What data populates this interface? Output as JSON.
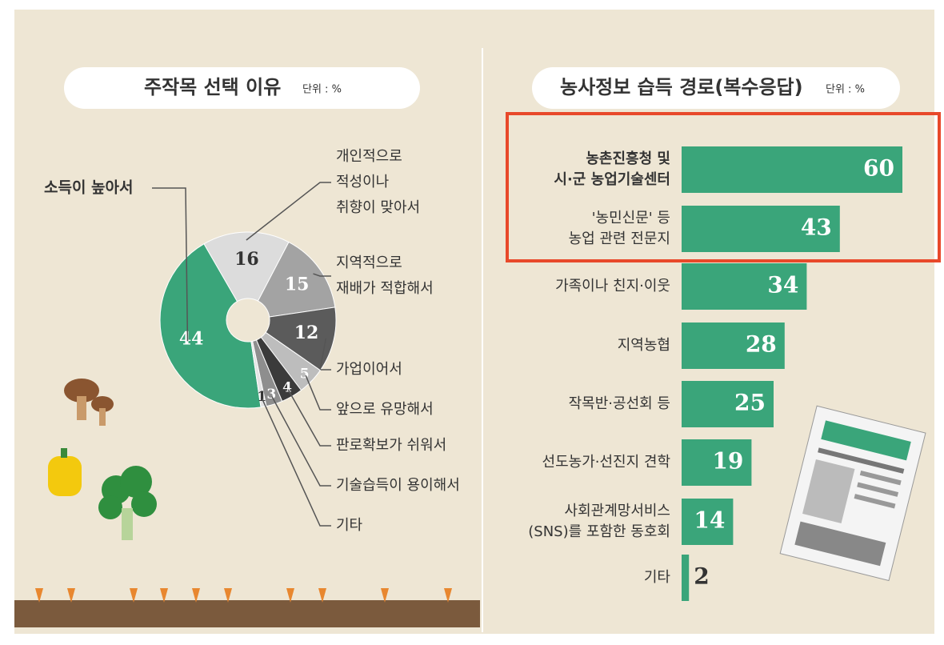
{
  "chart_data": [
    {
      "type": "pie",
      "title": "주작목 선택 이유",
      "unit": "단위 : %",
      "categories": [
        [
          "소득이 높아서"
        ],
        [
          "개인적으로",
          "적성이나",
          "취향이 맞아서"
        ],
        [
          "지역적으로",
          "재배가 적합해서"
        ],
        [
          "가업이어서"
        ],
        [
          "앞으로 유망해서"
        ],
        [
          "판로확보가 쉬워서"
        ],
        [
          "기술습득이 용이해서"
        ],
        [
          "기타"
        ]
      ],
      "values": [
        44,
        16,
        15,
        12,
        5,
        4,
        3,
        1
      ],
      "colors": [
        "#3aa57a",
        "#dcdcdc",
        "#a3a3a3",
        "#5b5b5b",
        "#bdbdbd",
        "#3b3b3b",
        "#8e8e8e",
        "#e4e4e4"
      ]
    },
    {
      "type": "hbar",
      "title": "농사정보 습득 경로(복수응답)",
      "unit": "단위 : %",
      "categories": [
        [
          "농촌진흥청 및",
          "시·군 농업기술센터"
        ],
        [
          "'농민신문' 등",
          "농업 관련 전문지"
        ],
        [
          "가족이나 친지·이웃"
        ],
        [
          "지역농협"
        ],
        [
          "작목반·공선회 등"
        ],
        [
          "선도농가·선진지 견학"
        ],
        [
          "사회관계망서비스",
          "(SNS)를 포함한 동호회"
        ],
        [
          "기타"
        ]
      ],
      "values": [
        60,
        43,
        34,
        28,
        25,
        19,
        14,
        2
      ],
      "color": "#3aa57a"
    }
  ]
}
